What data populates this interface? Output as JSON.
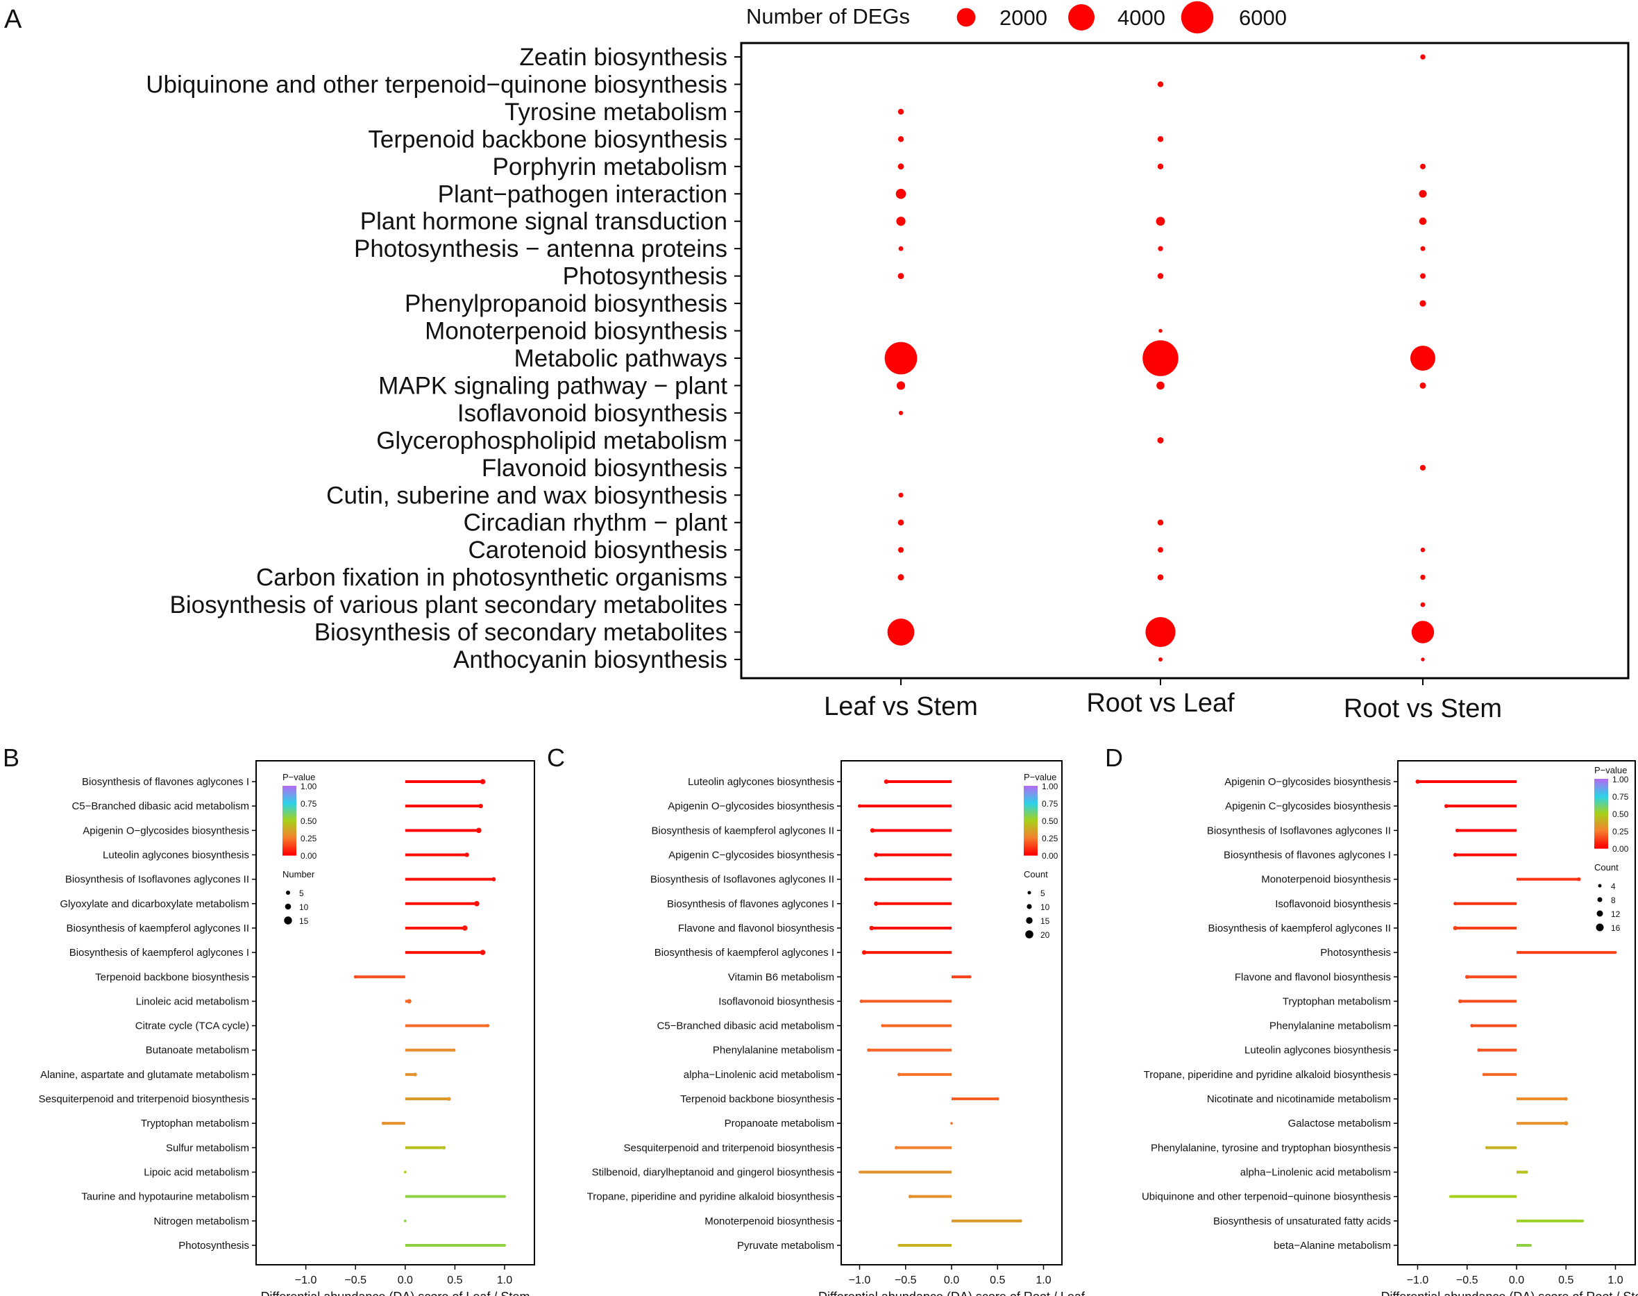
{
  "panel_letters": {
    "A": "A",
    "B": "B",
    "C": "C",
    "D": "D"
  },
  "chart_data": [
    {
      "panel": "A",
      "type": "scatter",
      "title": "",
      "xlabel": "",
      "ylabel": "",
      "dot_color": "#ff0000",
      "categories_x": [
        "Leaf vs Stem",
        "Root vs Leaf",
        "Root vs Stem"
      ],
      "categories_y": [
        "Zeatin biosynthesis",
        "Ubiquinone and other terpenoid−quinone biosynthesis",
        "Tyrosine metabolism",
        "Terpenoid backbone biosynthesis",
        "Porphyrin metabolism",
        "Plant−pathogen interaction",
        "Plant hormone signal transduction",
        "Photosynthesis − antenna proteins",
        "Photosynthesis",
        "Phenylpropanoid biosynthesis",
        "Monoterpenoid biosynthesis",
        "Metabolic pathways",
        "MAPK signaling pathway − plant",
        "Isoflavonoid biosynthesis",
        "Glycerophospholipid metabolism",
        "Flavonoid biosynthesis",
        "Cutin, suberine and wax biosynthesis",
        "Circadian rhythm − plant",
        "Carotenoid biosynthesis",
        "Carbon fixation in photosynthetic organisms",
        "Biosynthesis of various plant secondary metabolites",
        "Biosynthesis of secondary metabolites",
        "Anthocyanin biosynthesis"
      ],
      "values": [
        [
          null,
          null,
          150
        ],
        [
          null,
          200,
          null
        ],
        [
          200,
          null,
          null
        ],
        [
          200,
          200,
          null
        ],
        [
          220,
          200,
          180
        ],
        [
          600,
          null,
          340
        ],
        [
          480,
          450,
          310
        ],
        [
          130,
          150,
          140
        ],
        [
          220,
          200,
          180
        ],
        [
          null,
          null,
          240
        ],
        [
          null,
          90,
          null
        ],
        [
          6100,
          7400,
          3600
        ],
        [
          420,
          380,
          230
        ],
        [
          110,
          null,
          null
        ],
        [
          null,
          230,
          null
        ],
        [
          null,
          null,
          190
        ],
        [
          140,
          null,
          null
        ],
        [
          210,
          200,
          null
        ],
        [
          190,
          180,
          120
        ],
        [
          230,
          210,
          150
        ],
        [
          null,
          null,
          130
        ],
        [
          4200,
          5200,
          2900
        ],
        [
          null,
          100,
          80
        ]
      ],
      "size_legend": {
        "title": "Number of DEGs",
        "values": [
          2000,
          4000,
          6000
        ]
      }
    },
    {
      "panel": "B",
      "type": "lollipop",
      "xlabel": "Differential abundance (DA) score of Leaf / Stem",
      "xlim": [
        -1.5,
        1.3
      ],
      "xticks": [
        -1.0,
        -0.5,
        0.0,
        0.5,
        1.0
      ],
      "xtick_labels": [
        "−1.0",
        "−0.5",
        "0.0",
        "0.5",
        "1.0"
      ],
      "color_legend": {
        "title": "P−value",
        "ticks": [
          "1.00",
          "0.75",
          "0.50",
          "0.25",
          "0.00"
        ]
      },
      "size_legend": {
        "title": "Number",
        "values": [
          5,
          10,
          15
        ],
        "labels": [
          "5",
          "10",
          "15"
        ]
      },
      "categories": [
        "Biosynthesis of flavones aglycones I",
        "C5−Branched dibasic acid metabolism",
        "Apigenin O−glycosides biosynthesis",
        "Luteolin aglycones biosynthesis",
        "Biosynthesis of Isoflavones aglycones II",
        "Glyoxylate and dicarboxylate metabolism",
        "Biosynthesis of kaempferol aglycones II",
        "Biosynthesis of kaempferol aglycones I",
        "Terpenoid backbone biosynthesis",
        "Linoleic acid metabolism",
        "Citrate cycle (TCA cycle)",
        "Butanoate metabolism",
        "Alanine, aspartate and glutamate metabolism",
        "Sesquiterpenoid and triterpenoid biosynthesis",
        "Tryptophan metabolism",
        "Sulfur metabolism",
        "Lipoic acid metabolism",
        "Taurine and hypotaurine metabolism",
        "Nitrogen metabolism",
        "Photosynthesis"
      ],
      "da_scores": [
        0.78,
        0.76,
        0.74,
        0.62,
        0.89,
        0.72,
        0.6,
        0.78,
        -0.5,
        0.04,
        0.83,
        0.49,
        0.1,
        0.44,
        -0.22,
        0.39,
        0.0,
        1.0,
        0.0,
        1.0
      ],
      "p_values": [
        0.01,
        0.02,
        0.02,
        0.03,
        0.03,
        0.03,
        0.04,
        0.03,
        0.15,
        0.2,
        0.21,
        0.28,
        0.3,
        0.32,
        0.3,
        0.45,
        0.5,
        0.55,
        0.55,
        0.55
      ],
      "counts": [
        8,
        6,
        8,
        6,
        5,
        8,
        8,
        8,
        3,
        6,
        3,
        3,
        4,
        4,
        3,
        3,
        1,
        1,
        1,
        1
      ]
    },
    {
      "panel": "C",
      "type": "lollipop",
      "xlabel": "Differential abundance (DA) score of Root / Leaf",
      "xlim": [
        -1.2,
        1.2
      ],
      "xticks": [
        -1.0,
        -0.5,
        0.0,
        0.5,
        1.0
      ],
      "xtick_labels": [
        "−1.0",
        "−0.5",
        "0.0",
        "0.5",
        "1.0"
      ],
      "color_legend": {
        "title": "P−value",
        "ticks": [
          "1.00",
          "0.75",
          "0.50",
          "0.25",
          "0.00"
        ]
      },
      "size_legend": {
        "title": "Count",
        "values": [
          5,
          10,
          15,
          20
        ],
        "labels": [
          "5",
          "10",
          "15",
          "20"
        ]
      },
      "categories": [
        "Luteolin aglycones biosynthesis",
        "Apigenin O−glycosides biosynthesis",
        "Biosynthesis of kaempferol aglycones II",
        "Apigenin C−glycosides biosynthesis",
        "Biosynthesis of Isoflavones aglycones II",
        "Biosynthesis of flavones aglycones I",
        "Flavone and flavonol biosynthesis",
        "Biosynthesis of kaempferol aglycones I",
        "Vitamin B6 metabolism",
        "Isoflavonoid biosynthesis",
        "C5−Branched dibasic acid metabolism",
        "Phenylalanine metabolism",
        "alpha−Linolenic acid metabolism",
        "Terpenoid backbone biosynthesis",
        "Propanoate metabolism",
        "Sesquiterpenoid and triterpenoid biosynthesis",
        "Stilbenoid, diarylheptanoid and gingerol biosynthesis",
        "Tropane, piperidine and pyridine alkaloid biosynthesis",
        "Monoterpenoid biosynthesis",
        "Pyruvate metabolism"
      ],
      "da_scores": [
        -0.71,
        -1.0,
        -0.86,
        -0.82,
        -0.93,
        -0.82,
        -0.87,
        -0.95,
        0.2,
        -0.98,
        -0.75,
        -0.9,
        -0.57,
        0.5,
        0.0,
        -0.6,
        -1.0,
        -0.45,
        0.75,
        -0.57
      ],
      "p_values": [
        0.01,
        0.02,
        0.02,
        0.02,
        0.03,
        0.03,
        0.03,
        0.04,
        0.12,
        0.18,
        0.2,
        0.2,
        0.22,
        0.18,
        0.22,
        0.25,
        0.3,
        0.3,
        0.32,
        0.4
      ],
      "counts": [
        8,
        5,
        8,
        8,
        5,
        8,
        8,
        8,
        3,
        5,
        4,
        5,
        5,
        4,
        2,
        5,
        1,
        5,
        4,
        3
      ]
    },
    {
      "panel": "D",
      "type": "lollipop",
      "xlabel": "Differential abundance (DA) score of Root / Stem",
      "xlim": [
        -1.2,
        1.2
      ],
      "xticks": [
        -1.0,
        -0.5,
        0.0,
        0.5,
        1.0
      ],
      "xtick_labels": [
        "−1.0",
        "−0.5",
        "0.0",
        "0.5",
        "1.0"
      ],
      "color_legend": {
        "title": "P−value",
        "ticks": [
          "1.00",
          "0.75",
          "0.50",
          "0.25",
          "0.00"
        ]
      },
      "size_legend": {
        "title": "Count",
        "values": [
          4,
          8,
          12,
          16
        ],
        "labels": [
          "4",
          "8",
          "12",
          "16"
        ]
      },
      "categories": [
        "Apigenin O−glycosides biosynthesis",
        "Apigenin C−glycosides biosynthesis",
        "Biosynthesis of Isoflavones aglycones II",
        "Biosynthesis of flavones aglycones I",
        "Monoterpenoid biosynthesis",
        "Isoflavonoid biosynthesis",
        "Biosynthesis of kaempferol aglycones II",
        "Photosynthesis",
        "Flavone and flavonol biosynthesis",
        "Tryptophan metabolism",
        "Phenylalanine metabolism",
        "Luteolin aglycones biosynthesis",
        "Tropane, piperidine and pyridine alkaloid biosynthesis",
        "Nicotinate and nicotinamide metabolism",
        "Galactose metabolism",
        "Phenylalanine, tyrosine and tryptophan biosynthesis",
        "alpha−Linolenic acid metabolism",
        "Ubiquinone and other terpenoid−quinone biosynthesis",
        "Biosynthesis of unsaturated fatty acids",
        "beta−Alanine metabolism"
      ],
      "da_scores": [
        -1.0,
        -0.71,
        -0.6,
        -0.62,
        0.63,
        -0.62,
        -0.62,
        1.0,
        -0.5,
        -0.57,
        -0.45,
        -0.38,
        -0.33,
        0.5,
        0.5,
        -0.3,
        0.1,
        -0.67,
        0.67,
        0.14
      ],
      "p_values": [
        0.01,
        0.02,
        0.02,
        0.02,
        0.1,
        0.1,
        0.12,
        0.12,
        0.14,
        0.15,
        0.15,
        0.16,
        0.2,
        0.28,
        0.3,
        0.4,
        0.45,
        0.5,
        0.52,
        0.55
      ],
      "counts": [
        6,
        5,
        4,
        5,
        5,
        4,
        6,
        1,
        5,
        5,
        4,
        4,
        3,
        4,
        6,
        3,
        3,
        1,
        1,
        2
      ]
    }
  ]
}
